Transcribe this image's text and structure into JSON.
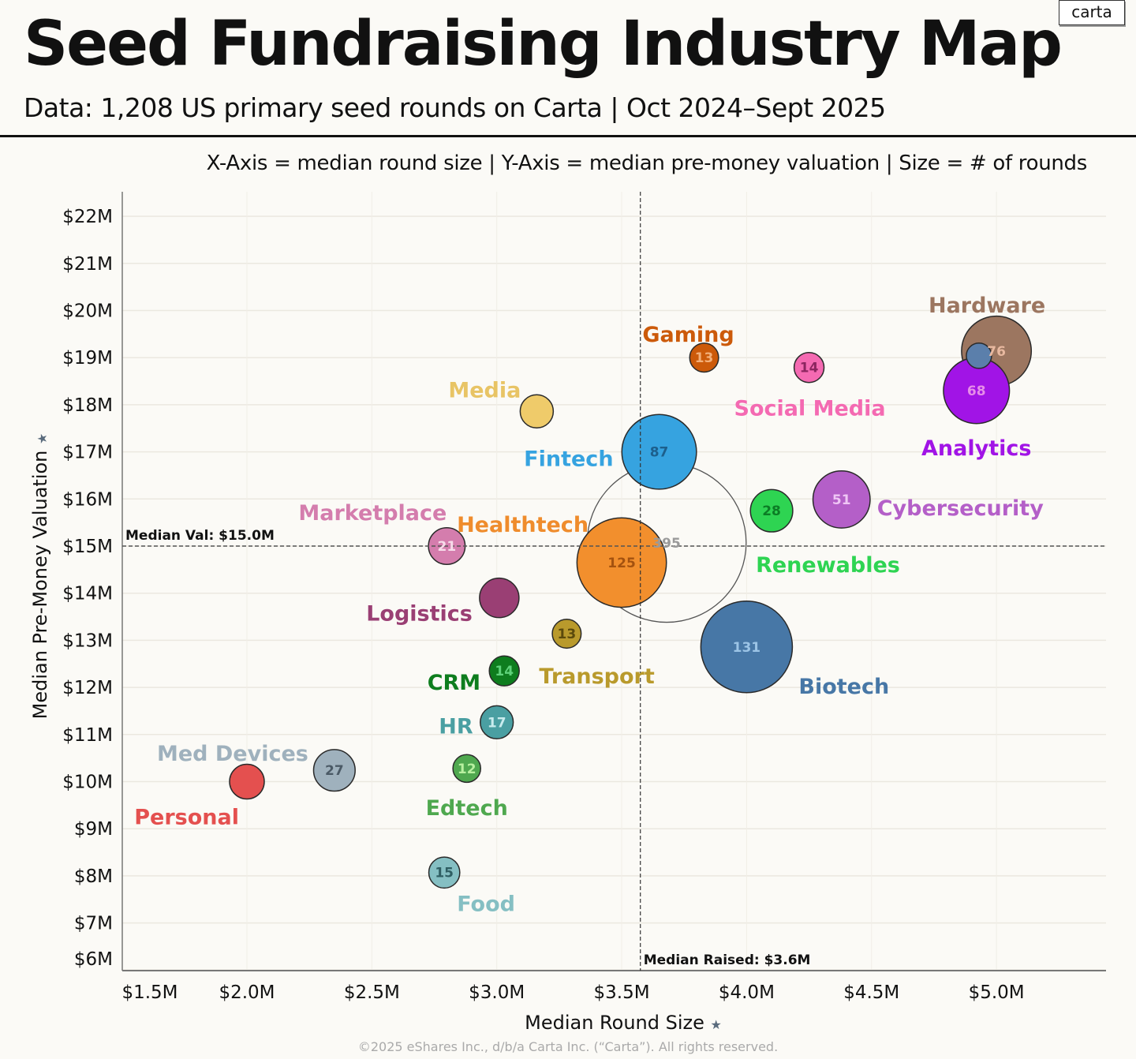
{
  "header": {
    "title": "Seed Fundraising Industry Map",
    "subtitle": "Data: 1,208 US primary seed rounds on Carta | Oct 2024–Sept 2025",
    "logo": "carta",
    "legend_note": "X-Axis = median round size  |  Y-Axis = median pre-money valuation  |  Size = # of rounds"
  },
  "footer": "©2025 eShares Inc., d/b/a Carta Inc. (“Carta”). All rights reserved.",
  "chart_data": {
    "type": "scatter",
    "variant": "bubble",
    "title": "Seed Fundraising Industry Map",
    "xlabel": "Median Round Size",
    "ylabel": "Median Pre-Money Valuation",
    "xlim": [
      1.5,
      5.4
    ],
    "ylim": [
      6,
      22.7
    ],
    "units": "$M",
    "grid": true,
    "x_ticks": [
      {
        "value": 1.5,
        "label": "$1.5M"
      },
      {
        "value": 2.0,
        "label": "$2.0M"
      },
      {
        "value": 2.5,
        "label": "$2.5M"
      },
      {
        "value": 3.0,
        "label": "$3.0M"
      },
      {
        "value": 3.5,
        "label": "$3.5M"
      },
      {
        "value": 4.0,
        "label": "$4.0M"
      },
      {
        "value": 4.5,
        "label": "$4.5M"
      },
      {
        "value": 5.0,
        "label": "$5.0M"
      }
    ],
    "y_ticks": [
      {
        "value": 22,
        "label": "$22M"
      },
      {
        "value": 21,
        "label": "$21M"
      },
      {
        "value": 20,
        "label": "$20M"
      },
      {
        "value": 19,
        "label": "$19M"
      },
      {
        "value": 18,
        "label": "$18M"
      },
      {
        "value": 17,
        "label": "$17M"
      },
      {
        "value": 16,
        "label": "$16M"
      },
      {
        "value": 15,
        "label": "$15M"
      },
      {
        "value": 14,
        "label": "$14M"
      },
      {
        "value": 13,
        "label": "$13M"
      },
      {
        "value": 12,
        "label": "$12M"
      },
      {
        "value": 11,
        "label": "$11M"
      },
      {
        "value": 10,
        "label": "$10M"
      },
      {
        "value": 9,
        "label": "$9M"
      },
      {
        "value": 8,
        "label": "$8M"
      },
      {
        "value": 7,
        "label": "$7M"
      },
      {
        "value": 6,
        "label": "$6M"
      }
    ],
    "reference_lines": {
      "median_valuation": {
        "value": 15.0,
        "label": "Median Val: $15.0M"
      },
      "median_raised": {
        "value": 3.6,
        "label": "Median Raised: $3.6M"
      }
    },
    "series": [
      {
        "name": "Unlabeled (all-industry)",
        "x": 3.68,
        "y": 15.07,
        "count": 395,
        "count_label": "395",
        "color": "none",
        "label_color": "#9a9a9a"
      },
      {
        "name": "Hardware",
        "x": 5.0,
        "y": 19.14,
        "count": 76,
        "count_label": "76",
        "color": "#9c7660",
        "label_color": "#9c7660",
        "count_color": "#e8b9a0"
      },
      {
        "name": "Analytics",
        "x": 4.92,
        "y": 18.3,
        "count": 68,
        "count_label": "68",
        "color": "#a114e6",
        "label_color": "#a114e6",
        "count_color": "#e68ee8"
      },
      {
        "name": "Unlabeled (blue)",
        "x": 4.93,
        "y": 19.04,
        "count": null,
        "count_label": "",
        "color": "#5b7fab"
      },
      {
        "name": "Gaming",
        "x": 3.83,
        "y": 19.0,
        "count": 13,
        "count_label": "13",
        "color": "#cc5a0a",
        "label_color": "#cc5a0a",
        "count_color": "#f3b07a"
      },
      {
        "name": "Social Media",
        "x": 4.25,
        "y": 18.79,
        "count": 14,
        "count_label": "14",
        "color": "#f46ab2",
        "label_color": "#f46ab2",
        "count_color": "#8c2660"
      },
      {
        "name": "Media",
        "x": 3.16,
        "y": 17.86,
        "count": null,
        "count_label": "",
        "color": "#efcb6a",
        "label_color": "#e8c465"
      },
      {
        "name": "Fintech",
        "x": 3.65,
        "y": 17.0,
        "count": 87,
        "count_label": "87",
        "color": "#36a3e0",
        "label_color": "#36a3e0",
        "count_color": "#1d5f8c"
      },
      {
        "name": "Cybersecurity",
        "x": 4.38,
        "y": 15.99,
        "count": 51,
        "count_label": "51",
        "color": "#b45fc8",
        "label_color": "#b45fc8",
        "count_color": "#efc6f5"
      },
      {
        "name": "Renewables",
        "x": 4.1,
        "y": 15.75,
        "count": 28,
        "count_label": "28",
        "color": "#2ed452",
        "label_color": "#2ed452",
        "count_color": "#0c7d25"
      },
      {
        "name": "Marketplace",
        "x": 2.8,
        "y": 15.0,
        "count": 21,
        "count_label": "21",
        "color": "#d47dad",
        "label_color": "#d47dad",
        "count_color": "#f7dcea"
      },
      {
        "name": "Healthtech",
        "x": 3.5,
        "y": 14.65,
        "count": 125,
        "count_label": "125",
        "color": "#f28f2d",
        "label_color": "#ef8c2c",
        "count_color": "#a4520f"
      },
      {
        "name": "Logistics",
        "x": 3.01,
        "y": 13.9,
        "count": null,
        "count_label": "",
        "color": "#9a3f74",
        "label_color": "#9a3f74"
      },
      {
        "name": "Transport",
        "x": 3.28,
        "y": 13.14,
        "count": 13,
        "count_label": "13",
        "color": "#b99a2c",
        "label_color": "#b99a2c",
        "count_color": "#5b4a0c"
      },
      {
        "name": "Biotech",
        "x": 4.0,
        "y": 12.86,
        "count": 131,
        "count_label": "131",
        "color": "#4777a6",
        "label_color": "#4777a6",
        "count_color": "#9cc4e6"
      },
      {
        "name": "CRM",
        "x": 3.03,
        "y": 12.35,
        "count": 14,
        "count_label": "14",
        "color": "#0e7d1e",
        "label_color": "#0e7d1e",
        "count_color": "#5fd27a"
      },
      {
        "name": "HR",
        "x": 3.0,
        "y": 11.26,
        "count": 17,
        "count_label": "17",
        "color": "#4a9fa2",
        "label_color": "#4a9fa2",
        "count_color": "#c9ecee"
      },
      {
        "name": "Med Devices",
        "x": 2.35,
        "y": 10.24,
        "count": 27,
        "count_label": "27",
        "color": "#9fb1bd",
        "label_color": "#9fb1bd",
        "count_color": "#4b5a66"
      },
      {
        "name": "Edtech",
        "x": 2.88,
        "y": 10.28,
        "count": 12,
        "count_label": "12",
        "color": "#4fa84f",
        "label_color": "#4fa84f",
        "count_color": "#b8f0a0"
      },
      {
        "name": "Personal",
        "x": 2.0,
        "y": 10.0,
        "count": null,
        "count_label": "",
        "color": "#e4504f",
        "label_color": "#e4504f"
      },
      {
        "name": "Food",
        "x": 2.79,
        "y": 8.07,
        "count": 15,
        "count_label": "15",
        "color": "#85bfc3",
        "label_color": "#85bfc3",
        "count_color": "#2f5e63"
      }
    ]
  }
}
